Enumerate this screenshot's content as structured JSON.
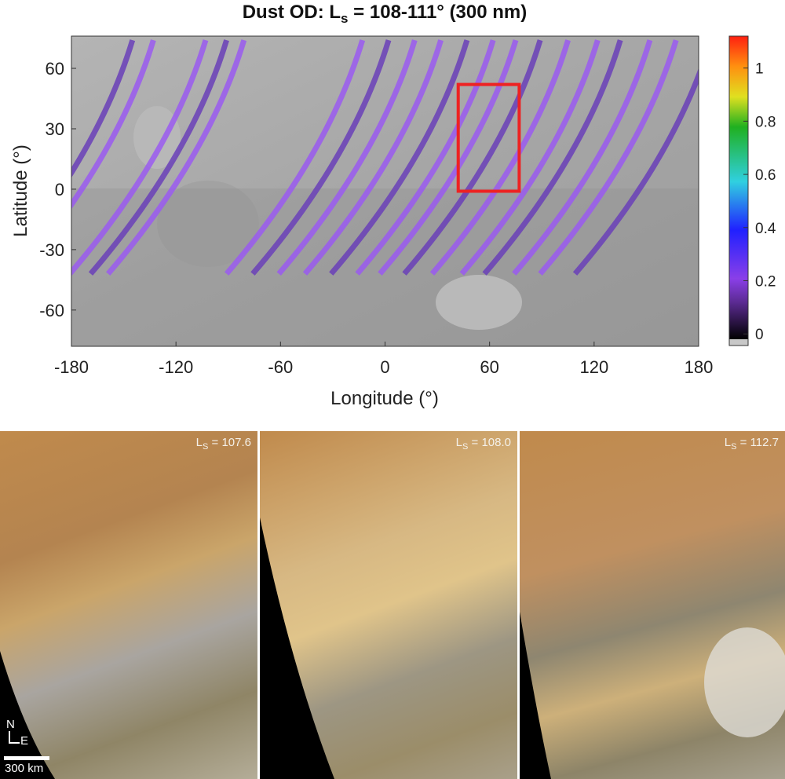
{
  "chart_data": {
    "type": "heatmap",
    "title_main": "Dust OD: L",
    "title_sub": "s",
    "title_rest": " = 108-111° (300 nm)",
    "xlabel": "Longitude (°)",
    "ylabel": "Latitude (°)",
    "xlim": [
      -180,
      180
    ],
    "ylim": [
      -78,
      76
    ],
    "xticks": [
      -180,
      -120,
      -60,
      0,
      60,
      120,
      180
    ],
    "yticks": [
      60,
      30,
      0,
      -30,
      -60
    ],
    "colorbar": {
      "range": [
        -0.02,
        1.12
      ],
      "ticks": [
        1,
        0.8,
        0.6,
        0.4,
        0.2,
        0
      ],
      "colors": [
        "#000000",
        "#8a3fe8",
        "#2020ff",
        "#30d0e0",
        "#20b020",
        "#e0e020",
        "#ff9010",
        "#ff2010"
      ]
    },
    "highlight_box": {
      "lon": [
        42,
        77
      ],
      "lat": [
        -1,
        52
      ],
      "color": "#ee2222"
    }
  },
  "panels": [
    {
      "ls_label": "L",
      "ls_sub": "S",
      "ls_value": " = 107.6"
    },
    {
      "ls_label": "L",
      "ls_sub": "S",
      "ls_value": " = 108.0"
    },
    {
      "ls_label": "L",
      "ls_sub": "S",
      "ls_value": " = 112.7"
    }
  ],
  "compass": {
    "north": "N",
    "east": "E"
  },
  "scale_bar": "300 km"
}
